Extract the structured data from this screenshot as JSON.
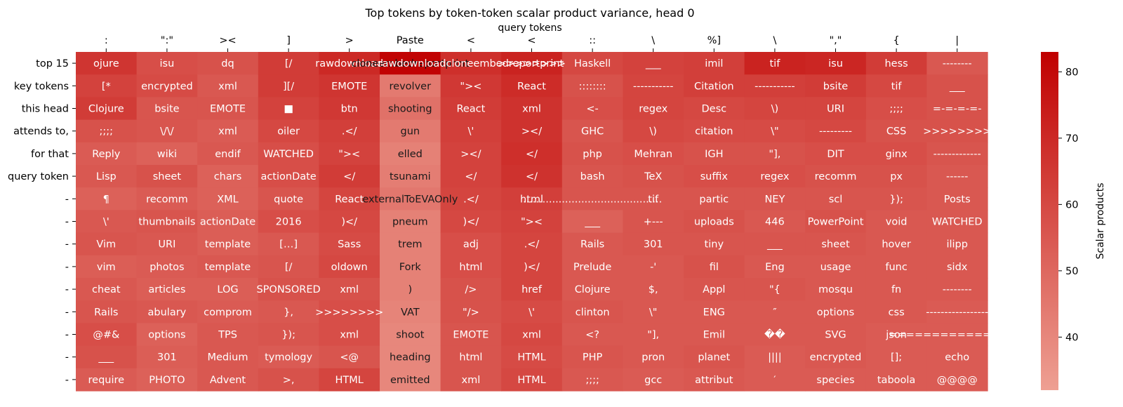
{
  "chart_data": {
    "type": "heatmap",
    "title": "Top tokens by token-token scalar product variance, head 0",
    "xlabel": "query tokens",
    "ylabel": "",
    "x_categories": [
      ":",
      "\":\"",
      "><",
      "]",
      ">",
      "Paste",
      "<",
      "<",
      "::",
      "\\",
      "%]",
      "\\",
      "\",\"",
      "{",
      "|"
    ],
    "y_tick_labels": [
      "top 15",
      "key tokens",
      "this head",
      "attends to,",
      "for that",
      "query token",
      "-",
      "-",
      "-",
      "-",
      "-",
      "-",
      "-",
      "-",
      "-"
    ],
    "cell_tokens": [
      [
        "ojure",
        "[*",
        "Clojure",
        ";;;;",
        "Reply",
        "Lisp",
        "¶",
        "\\'",
        "Vim",
        "vim",
        "cheat",
        "Rails",
        "@#&",
        "___",
        "require"
      ],
      [
        "isu",
        "encrypted",
        "bsite",
        "\\/\\/",
        "wiki",
        "sheet",
        "recomm",
        "thumbnails",
        "URI",
        "photos",
        "articles",
        "abulary",
        "options",
        "301",
        "PHOTO"
      ],
      [
        "dq",
        "xml",
        "EMOTE",
        "xml",
        "endif",
        "chars",
        "XML",
        "actionDate",
        "template",
        "template",
        "LOG",
        "comprom",
        "TPS",
        "Medium",
        "Advent"
      ],
      [
        "[/",
        "][/",
        "■",
        "oiler",
        "WATCHED",
        "actionDate",
        "quote",
        "2016",
        "[…]",
        "[/",
        "SPONSORED",
        "},",
        "});",
        "tymology",
        ">,"
      ],
      [
        "rawdownload",
        "EMOTE",
        "btn",
        ".</",
        "\"><",
        "</",
        "React",
        ")</",
        "Sass",
        "oldown",
        "xml",
        ">>>>>>>>",
        "xml",
        "<@",
        "HTML"
      ],
      [
        "cloneembedreportprint",
        "revolver",
        "shooting",
        "gun",
        "elled",
        "tsunami",
        "externalToEVAOnly",
        "pneum",
        "trem",
        "Fork",
        ")",
        "VAT",
        "shoot",
        "heading",
        "emitted"
      ],
      [
        "rawdownloadcloneembedreportprint",
        "\"><",
        "React",
        "\\'",
        "></",
        "</",
        ".</",
        ")</",
        "adj",
        "html",
        "/>",
        "\"/>",
        "EMOTE",
        "html",
        "xml"
      ],
      [
        ">>>>>>>>",
        "React",
        "xml",
        "></",
        "</",
        "</",
        "html",
        "\"><",
        ".</",
        ")</",
        "href",
        "\\'",
        "xml",
        "HTML",
        "HTML"
      ],
      [
        "Haskell",
        "::::::::",
        "<-",
        "GHC",
        "php",
        "bash",
        "...........................................",
        "___",
        "Rails",
        "Prelude",
        "Clojure",
        "clinton",
        "<?",
        "PHP",
        ";;;;"
      ],
      [
        "___",
        "-----------",
        "regex",
        "\\)",
        "Mehran",
        "TeX",
        "tif",
        "+---",
        "301",
        "-'",
        "$,",
        "\\\"",
        "\"],",
        "pron",
        "gcc"
      ],
      [
        "imil",
        "Citation",
        "Desc",
        "citation",
        "IGH",
        "suffix",
        "partic",
        "uploads",
        "tiny",
        "fil",
        "Appl",
        "ENG",
        "Emil",
        "planet",
        "attribut"
      ],
      [
        "tif",
        "-----------",
        "\\)",
        "\\\"",
        "\"],",
        "regex",
        "NEY",
        "446",
        "___",
        "Eng",
        "\"{",
        "″",
        "��",
        "||||",
        "′"
      ],
      [
        "isu",
        "bsite",
        "URI",
        "---------",
        "DIT",
        "recomm",
        "scl",
        "PowerPoint",
        "sheet",
        "usage",
        "mosqu",
        "options",
        "SVG",
        "encrypted",
        "species"
      ],
      [
        "hess",
        "tif",
        ";;;;",
        "CSS",
        "ginx",
        "px",
        "});",
        "void",
        "hover",
        "func",
        "fn",
        "css",
        "json",
        "[];",
        "taboola"
      ],
      [
        "--------",
        "___",
        "=-=-=-=-",
        ">>>>>>>>",
        "-------------",
        "------",
        "Posts",
        "WATCHED",
        "ilipp",
        "sidx",
        "--------",
        "-----------------",
        "================",
        "echo",
        "@@@@"
      ]
    ],
    "values": [
      [
        66,
        62,
        64,
        57,
        54,
        55,
        52,
        55,
        56,
        53,
        55,
        56,
        58,
        57,
        54
      ],
      [
        58,
        59,
        56,
        56,
        52,
        57,
        54,
        56,
        55,
        54,
        53,
        55,
        52,
        53,
        52
      ],
      [
        57,
        55,
        56,
        54,
        55,
        52,
        52,
        53,
        53,
        55,
        53,
        54,
        55,
        55,
        55
      ],
      [
        64,
        64,
        62,
        60,
        58,
        58,
        56,
        58,
        55,
        56,
        57,
        55,
        56,
        54,
        57
      ],
      [
        70,
        66,
        65,
        63,
        62,
        64,
        61,
        60,
        59,
        60,
        57,
        58,
        58,
        56,
        61
      ],
      [
        82,
        44,
        47,
        44,
        42,
        43,
        45,
        42,
        42,
        42,
        42,
        41,
        40,
        40,
        40
      ],
      [
        68,
        65,
        64,
        63,
        62,
        62,
        61,
        60,
        58,
        58,
        57,
        57,
        56,
        56,
        56
      ],
      [
        72,
        69,
        67,
        67,
        68,
        67,
        63,
        62,
        61,
        61,
        61,
        59,
        60,
        59,
        60
      ],
      [
        60,
        57,
        58,
        56,
        57,
        56,
        56,
        52,
        55,
        55,
        55,
        56,
        55,
        56,
        55
      ],
      [
        62,
        61,
        61,
        60,
        58,
        57,
        56,
        56,
        56,
        55,
        55,
        55,
        55,
        55,
        54
      ],
      [
        63,
        63,
        60,
        59,
        57,
        58,
        56,
        57,
        56,
        57,
        56,
        55,
        55,
        56,
        55
      ],
      [
        72,
        63,
        61,
        59,
        57,
        58,
        56,
        55,
        56,
        55,
        56,
        55,
        55,
        54,
        54
      ],
      [
        71,
        64,
        61,
        60,
        58,
        57,
        56,
        57,
        56,
        55,
        55,
        55,
        55,
        55,
        54
      ],
      [
        64,
        60,
        58,
        57,
        58,
        57,
        56,
        55,
        55,
        55,
        55,
        55,
        54,
        54,
        54
      ],
      [
        55,
        57,
        57,
        57,
        56,
        55,
        55,
        55,
        55,
        55,
        55,
        54,
        54,
        54,
        54
      ]
    ],
    "colorbar": {
      "label": "Scalar products",
      "ticks": [
        40,
        50,
        60,
        70,
        80
      ],
      "range": [
        32,
        83
      ],
      "color_low": "#eea093",
      "color_high": "#c00000"
    }
  }
}
